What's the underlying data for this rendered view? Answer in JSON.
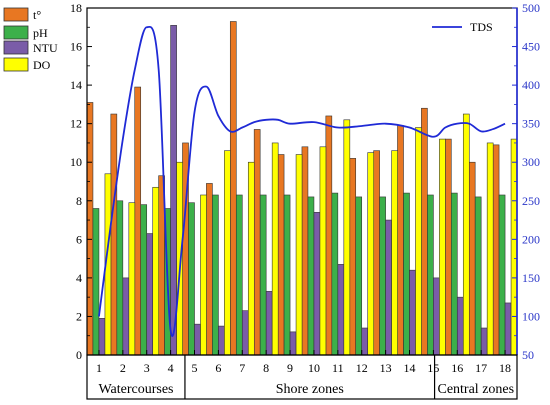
{
  "chart_data": {
    "type": "bar",
    "x": [
      1,
      2,
      3,
      4,
      5,
      6,
      7,
      8,
      9,
      10,
      11,
      12,
      13,
      14,
      15,
      16,
      17,
      18
    ],
    "groups": [
      {
        "label": "Watercourses",
        "from": 1,
        "to": 4
      },
      {
        "label": "Shore zones",
        "from": 5,
        "to": 15
      },
      {
        "label": "Central zones",
        "from": 15,
        "to": 18
      }
    ],
    "series": [
      {
        "name": "t°",
        "color": "#e87722",
        "axis": "left",
        "values": [
          13.1,
          12.5,
          13.9,
          9.3,
          11.0,
          8.9,
          17.3,
          11.7,
          10.4,
          10.8,
          12.4,
          10.2,
          10.6,
          11.9,
          12.8,
          11.2,
          10.0,
          10.9
        ]
      },
      {
        "name": "pH",
        "color": "#3cb04a",
        "axis": "left",
        "values": [
          7.6,
          8.0,
          7.8,
          7.6,
          7.9,
          8.3,
          8.3,
          8.3,
          8.3,
          8.2,
          8.4,
          8.2,
          8.2,
          8.4,
          8.3,
          8.4,
          8.2,
          8.3
        ]
      },
      {
        "name": "NTU",
        "color": "#7a5ca8",
        "axis": "left",
        "values": [
          1.9,
          4.0,
          6.3,
          17.1,
          1.6,
          1.5,
          2.3,
          3.3,
          1.2,
          7.4,
          4.7,
          1.4,
          7.0,
          4.4,
          4.0,
          3.0,
          1.4,
          2.7
        ]
      },
      {
        "name": "DO",
        "color": "#ffff00",
        "axis": "left",
        "values": [
          9.4,
          7.9,
          8.7,
          10.0,
          8.3,
          10.6,
          10.0,
          11.0,
          10.4,
          10.8,
          12.2,
          10.5,
          10.6,
          11.8,
          11.2,
          12.5,
          11.0,
          11.2
        ]
      },
      {
        "name": "TDS",
        "color": "#1f2ad6",
        "axis": "right",
        "type": "line",
        "x": [
          1,
          1.5,
          2,
          2.5,
          3,
          3.5,
          4,
          4.5,
          5,
          5.5,
          6,
          6.5,
          7,
          7.5,
          8,
          8.5,
          9,
          10,
          11,
          12,
          13,
          14,
          15,
          15.5,
          16,
          16.5,
          17,
          17.5,
          18
        ],
        "values": [
          100,
          220,
          330,
          420,
          475,
          420,
          82,
          200,
          365,
          398,
          360,
          340,
          345,
          352,
          355,
          355,
          350,
          352,
          345,
          347,
          350,
          345,
          333,
          345,
          350,
          350,
          340,
          343,
          350
        ]
      }
    ],
    "ylim_left": [
      0,
      18
    ],
    "yticks_left": [
      0,
      2,
      4,
      6,
      8,
      10,
      12,
      14,
      16,
      18
    ],
    "ylim_right": [
      50,
      500
    ],
    "yticks_right": [
      50,
      100,
      150,
      200,
      250,
      300,
      350,
      400,
      450,
      500
    ],
    "legend": {
      "top_left": [
        "t°",
        "pH",
        "NTU",
        "DO"
      ],
      "top_right": [
        "TDS"
      ]
    },
    "grid": false
  }
}
